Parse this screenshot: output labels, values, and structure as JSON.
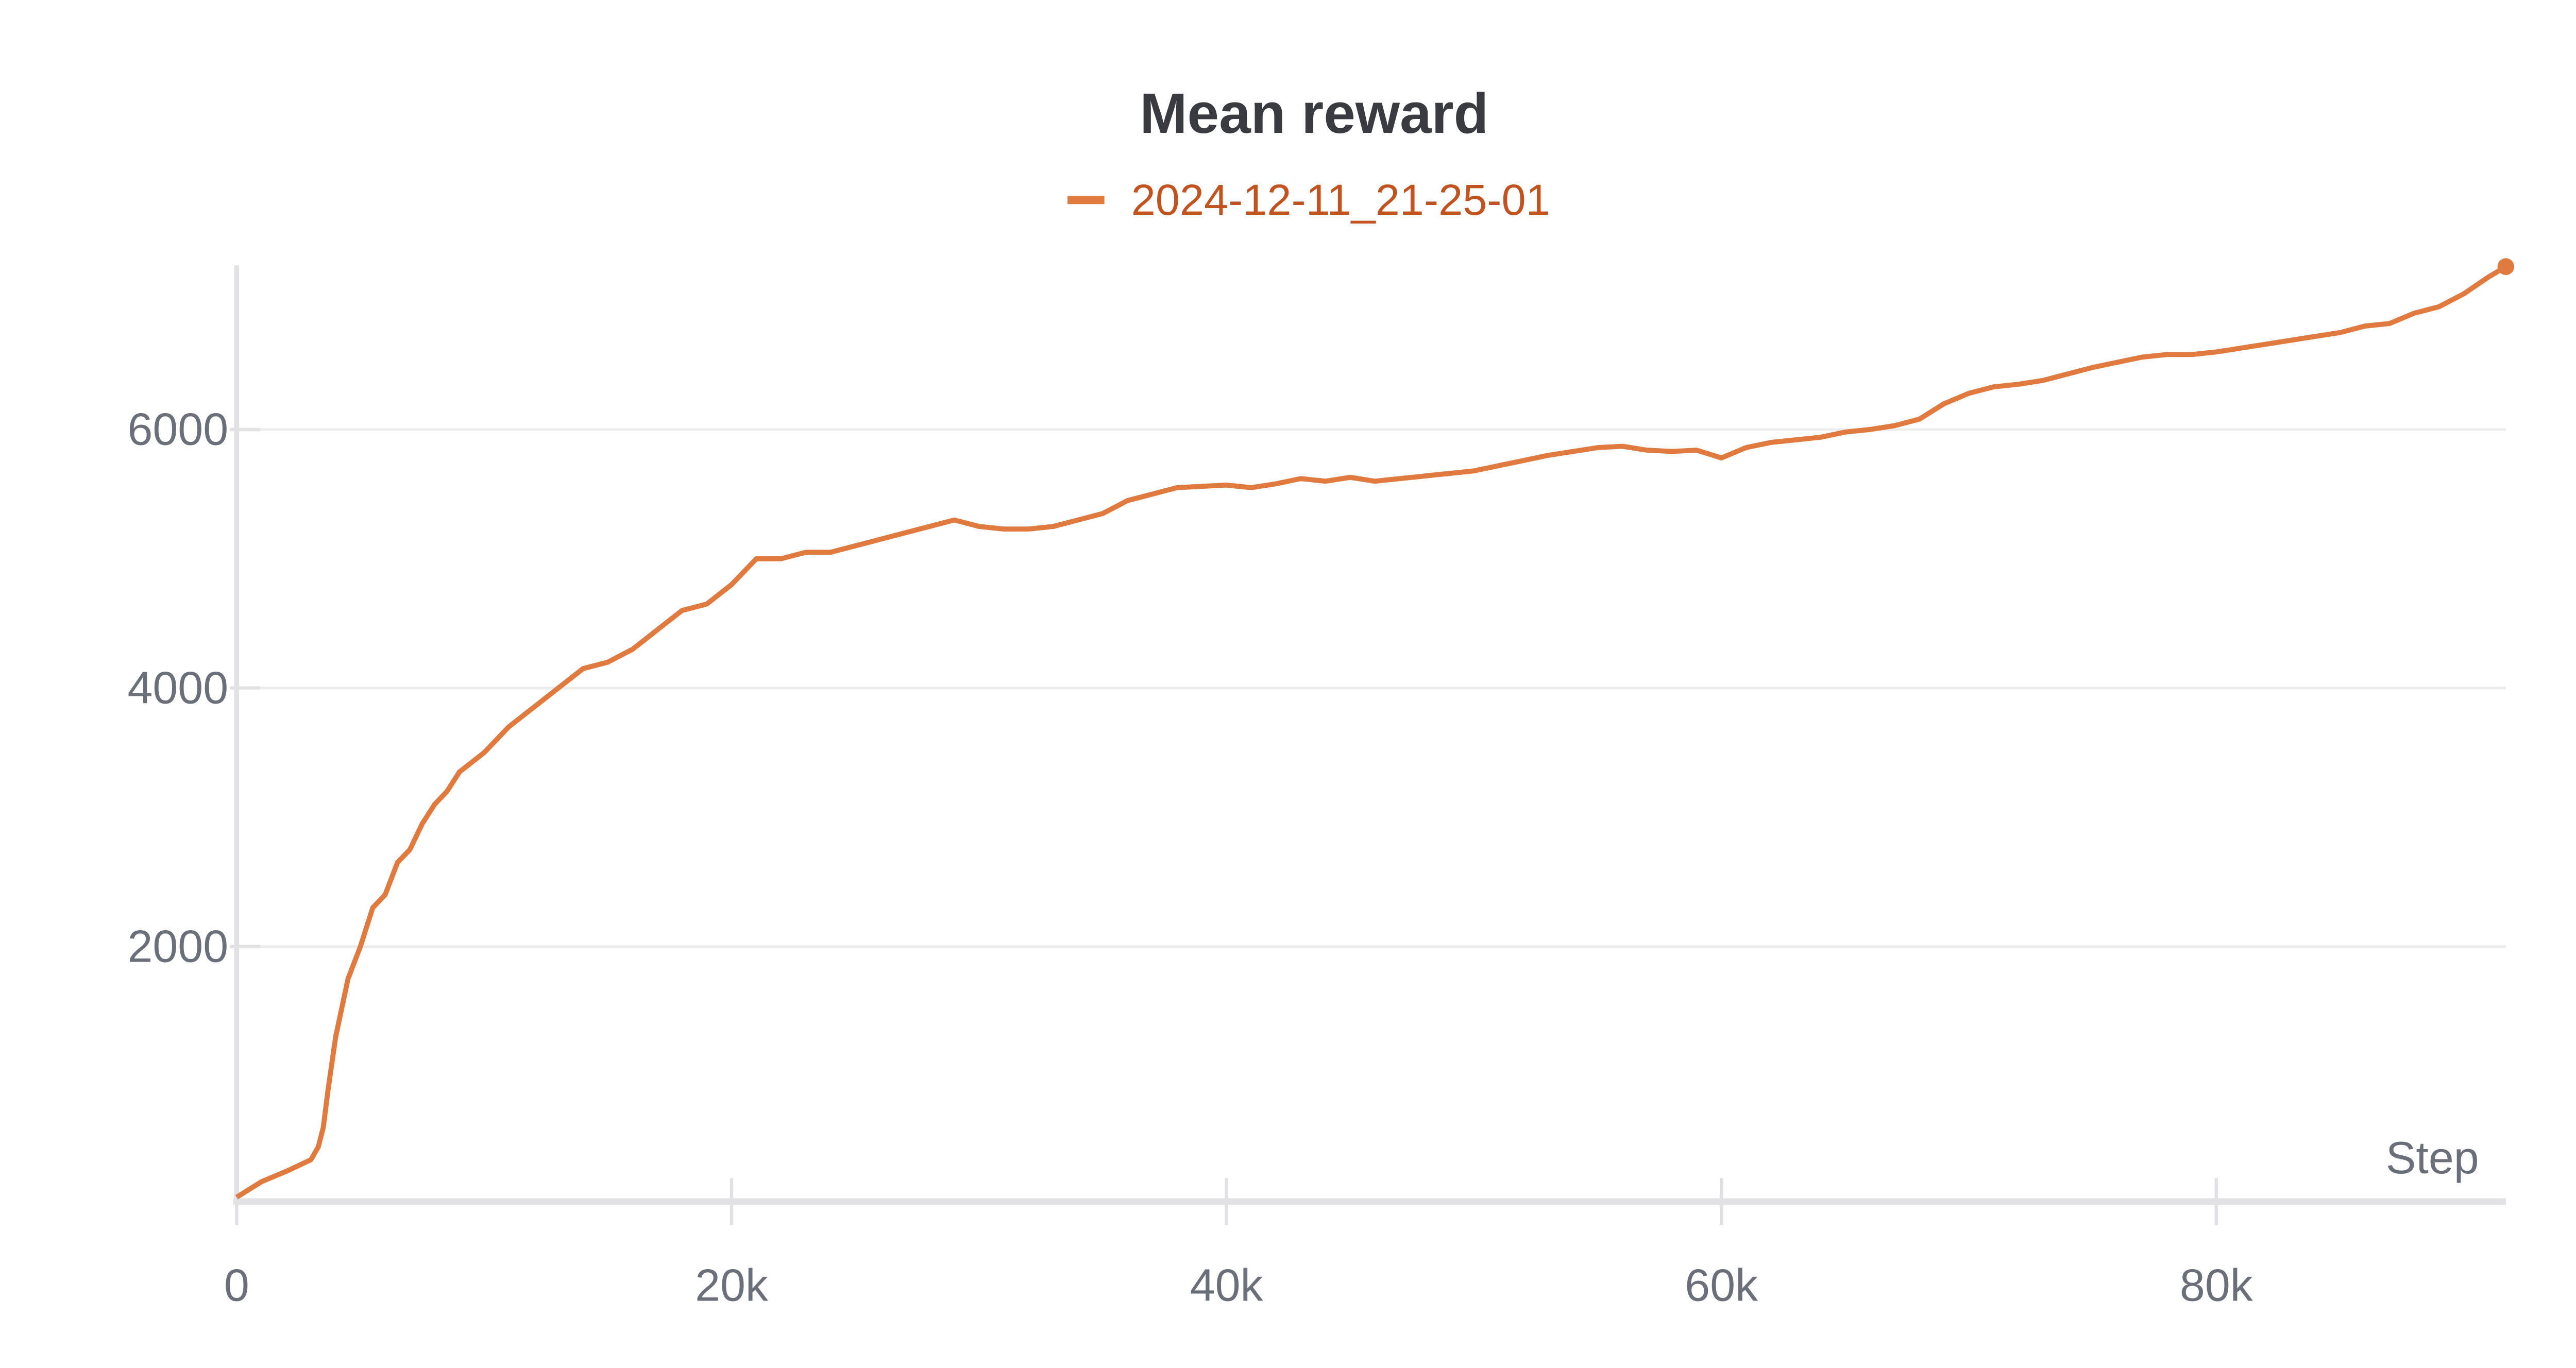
{
  "chart_data": {
    "type": "line",
    "title": "Mean reward",
    "x_label": "Step",
    "x": [
      0,
      500,
      1000,
      2000,
      3000,
      3300,
      3500,
      3700,
      4000,
      4500,
      5000,
      5500,
      6000,
      6500,
      7000,
      7500,
      8000,
      8500,
      9000,
      10000,
      11000,
      12000,
      13000,
      14000,
      15000,
      16000,
      17000,
      18000,
      19000,
      20000,
      21000,
      22000,
      23000,
      24000,
      25000,
      26000,
      27000,
      28000,
      29000,
      30000,
      31000,
      32000,
      33000,
      34000,
      35000,
      36000,
      37000,
      38000,
      39000,
      40000,
      41000,
      42000,
      43000,
      44000,
      45000,
      46000,
      47000,
      48000,
      49000,
      50000,
      51000,
      52000,
      53000,
      54000,
      55000,
      56000,
      57000,
      58000,
      59000,
      60000,
      61000,
      62000,
      63000,
      64000,
      65000,
      66000,
      67000,
      68000,
      69000,
      70000,
      71000,
      72000,
      73000,
      74000,
      75000,
      76000,
      77000,
      78000,
      79000,
      80000,
      81000,
      82000,
      83000,
      84000,
      85000,
      86000,
      87000,
      88000,
      89000,
      90000,
      91000,
      91700
    ],
    "series": [
      {
        "name": "2024-12-11_21-25-01",
        "color": "#e07a3f",
        "values": [
          60,
          120,
          180,
          260,
          350,
          450,
          600,
          900,
          1300,
          1750,
          2000,
          2300,
          2400,
          2650,
          2750,
          2950,
          3100,
          3200,
          3350,
          3500,
          3700,
          3850,
          4000,
          4150,
          4200,
          4300,
          4450,
          4600,
          4650,
          4800,
          5000,
          5000,
          5050,
          5050,
          5100,
          5150,
          5200,
          5250,
          5300,
          5250,
          5230,
          5230,
          5250,
          5300,
          5350,
          5450,
          5500,
          5550,
          5560,
          5570,
          5550,
          5580,
          5620,
          5600,
          5630,
          5600,
          5620,
          5640,
          5660,
          5680,
          5720,
          5760,
          5800,
          5830,
          5860,
          5870,
          5840,
          5830,
          5840,
          5780,
          5860,
          5900,
          5920,
          5940,
          5980,
          6000,
          6030,
          6080,
          6200,
          6280,
          6330,
          6350,
          6380,
          6430,
          6480,
          6520,
          6560,
          6580,
          6580,
          6600,
          6630,
          6660,
          6690,
          6720,
          6750,
          6800,
          6820,
          6900,
          6950,
          7050,
          7180,
          7260
        ]
      }
    ],
    "xlim": [
      0,
      91700
    ],
    "ylim": [
      0,
      7270
    ],
    "xticks": [
      0,
      {
        "value": 20000,
        "label": "20k"
      },
      {
        "value": 40000,
        "label": "40k"
      },
      {
        "value": 60000,
        "label": "60k"
      },
      {
        "value": 80000,
        "label": "80k"
      }
    ],
    "yticks": [
      2000,
      4000,
      6000
    ],
    "grid": true
  }
}
